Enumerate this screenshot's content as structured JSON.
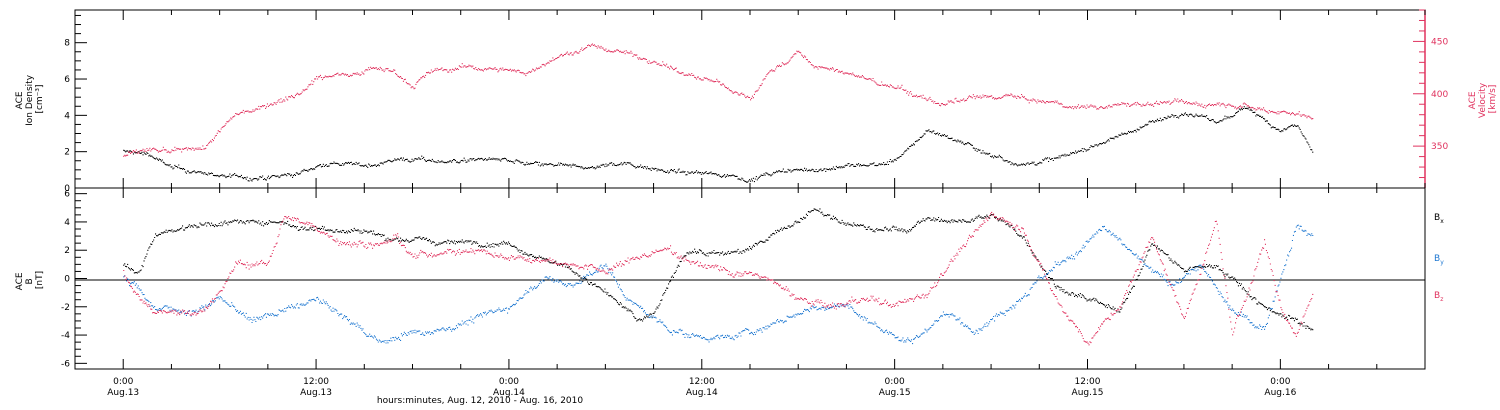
{
  "chart_data": [
    {
      "type": "scatter",
      "panel": "top",
      "ylabel_lines": [
        "ACE",
        "Ion Density",
        "[cm⁻³]"
      ],
      "ylim": [
        0,
        9.8
      ],
      "yticks": [
        0,
        2,
        4,
        6,
        8
      ],
      "ylabel_right_lines": [
        "ACE",
        "Velocity",
        "[km/s]"
      ],
      "ylim_right": [
        310,
        480
      ],
      "yticks_right": [
        350,
        400,
        450
      ],
      "xlim_hours": [
        -3,
        81
      ],
      "series": [
        {
          "axis": "left",
          "color": "#000000",
          "keypoints": [
            [
              0,
              2.0
            ],
            [
              1.5,
              1.9
            ],
            [
              3,
              1.1
            ],
            [
              5,
              0.8
            ],
            [
              7,
              0.6
            ],
            [
              9,
              0.5
            ],
            [
              11,
              0.8
            ],
            [
              12,
              1.2
            ],
            [
              13,
              1.4
            ],
            [
              15,
              1.2
            ],
            [
              17,
              1.6
            ],
            [
              19,
              1.5
            ],
            [
              21,
              1.5
            ],
            [
              23,
              1.6
            ],
            [
              25,
              1.3
            ],
            [
              27,
              1.2
            ],
            [
              29,
              1.1
            ],
            [
              31,
              1.4
            ],
            [
              33,
              1.1
            ],
            [
              35,
              0.8
            ],
            [
              37,
              0.8
            ],
            [
              39,
              0.5
            ],
            [
              41,
              0.9
            ],
            [
              43,
              1.0
            ],
            [
              45,
              1.2
            ],
            [
              47,
              1.3
            ],
            [
              48,
              1.5
            ],
            [
              49,
              2.2
            ],
            [
              50,
              3.2
            ],
            [
              52,
              2.6
            ],
            [
              54,
              1.8
            ],
            [
              56,
              1.3
            ],
            [
              58,
              1.6
            ],
            [
              60,
              2.2
            ],
            [
              62,
              2.9
            ],
            [
              64,
              3.6
            ],
            [
              66,
              4.2
            ],
            [
              68,
              3.6
            ],
            [
              70,
              4.4
            ],
            [
              72,
              3.2
            ],
            [
              73,
              3.5
            ],
            [
              74,
              2.0
            ]
          ],
          "noise": 0.25
        },
        {
          "axis": "right",
          "color": "#e0335f",
          "keypoints": [
            [
              0,
              340
            ],
            [
              1.5,
              346
            ],
            [
              3,
              343
            ],
            [
              5,
              348
            ],
            [
              7,
              380
            ],
            [
              9,
              390
            ],
            [
              11,
              402
            ],
            [
              12,
              415
            ],
            [
              14,
              420
            ],
            [
              16,
              425
            ],
            [
              17,
              420
            ],
            [
              18,
              408
            ],
            [
              19,
              420
            ],
            [
              21,
              425
            ],
            [
              23,
              424
            ],
            [
              25,
              420
            ],
            [
              27,
              435
            ],
            [
              29,
              445
            ],
            [
              31,
              440
            ],
            [
              33,
              432
            ],
            [
              35,
              418
            ],
            [
              37,
              410
            ],
            [
              39,
              395
            ],
            [
              40,
              418
            ],
            [
              42,
              440
            ],
            [
              43,
              425
            ],
            [
              45,
              420
            ],
            [
              47,
              410
            ],
            [
              49,
              400
            ],
            [
              51,
              390
            ],
            [
              53,
              395
            ],
            [
              55,
              398
            ],
            [
              57,
              392
            ],
            [
              59,
              388
            ],
            [
              61,
              388
            ],
            [
              63,
              390
            ],
            [
              65,
              392
            ],
            [
              67,
              390
            ],
            [
              69,
              392
            ],
            [
              71,
              385
            ],
            [
              73,
              382
            ],
            [
              74,
              375
            ]
          ],
          "noise": 5
        }
      ]
    },
    {
      "type": "scatter",
      "panel": "bottom",
      "ylabel_lines": [
        "ACE",
        "B",
        "[nT]"
      ],
      "ylim": [
        -6.4,
        6.4
      ],
      "yticks": [
        -6,
        -4,
        -2,
        0,
        2,
        4,
        6
      ],
      "xlim_hours": [
        -3,
        81
      ],
      "xticks_hours": [
        0,
        12,
        24,
        36,
        48,
        60,
        72
      ],
      "xtick_time_labels": [
        "0:00",
        "12:00",
        "0:00",
        "12:00",
        "0:00",
        "12:00",
        "0:00"
      ],
      "xtick_date_labels": [
        "Aug.13",
        "Aug.13",
        "Aug.14",
        "Aug.14",
        "Aug.15",
        "Aug.15",
        "Aug.16"
      ],
      "xlabel": "hours:minutes, Aug. 12, 2010 - Aug. 16, 2010",
      "series": [
        {
          "name": "Bx",
          "color": "#000000",
          "keypoints": [
            [
              0,
              1.0
            ],
            [
              1,
              0.5
            ],
            [
              2,
              3.2
            ],
            [
              4,
              3.7
            ],
            [
              6,
              4.0
            ],
            [
              8,
              3.9
            ],
            [
              10,
              4.1
            ],
            [
              11,
              3.6
            ],
            [
              13,
              3.5
            ],
            [
              15,
              3.4
            ],
            [
              16,
              3.0
            ],
            [
              18,
              2.7
            ],
            [
              20,
              2.5
            ],
            [
              22,
              2.6
            ],
            [
              24,
              2.5
            ],
            [
              26,
              1.5
            ],
            [
              28,
              0.5
            ],
            [
              30,
              -1.0
            ],
            [
              32,
              -3.0
            ],
            [
              33,
              -2.5
            ],
            [
              35,
              2.0
            ],
            [
              37,
              1.8
            ],
            [
              39,
              2.0
            ],
            [
              41,
              3.5
            ],
            [
              43,
              4.8
            ],
            [
              45,
              3.8
            ],
            [
              47,
              3.4
            ],
            [
              49,
              3.5
            ],
            [
              50,
              4.2
            ],
            [
              52,
              4.0
            ],
            [
              54,
              4.5
            ],
            [
              56,
              3.0
            ],
            [
              58,
              -0.5
            ],
            [
              60,
              -1.5
            ],
            [
              62,
              -2.5
            ],
            [
              64,
              2.5
            ],
            [
              66,
              0.5
            ],
            [
              68,
              1.0
            ],
            [
              69,
              0.0
            ],
            [
              71,
              -2.0
            ],
            [
              73,
              -3.0
            ],
            [
              74,
              -3.5
            ]
          ],
          "noise": 0.4
        },
        {
          "name": "By",
          "color": "#1f78d1",
          "keypoints": [
            [
              0,
              0.0
            ],
            [
              1,
              -0.8
            ],
            [
              2,
              -2.0
            ],
            [
              3,
              -2.2
            ],
            [
              4,
              -2.4
            ],
            [
              6,
              -1.5
            ],
            [
              8,
              -3.0
            ],
            [
              10,
              -2.3
            ],
            [
              12,
              -1.5
            ],
            [
              14,
              -3.0
            ],
            [
              16,
              -4.5
            ],
            [
              18,
              -3.8
            ],
            [
              20,
              -3.5
            ],
            [
              22,
              -2.8
            ],
            [
              24,
              -2.0
            ],
            [
              26,
              0.0
            ],
            [
              28,
              -0.5
            ],
            [
              30,
              1.0
            ],
            [
              31,
              -1.0
            ],
            [
              33,
              -3.0
            ],
            [
              35,
              -4.0
            ],
            [
              37,
              -4.2
            ],
            [
              39,
              -3.8
            ],
            [
              41,
              -3.0
            ],
            [
              43,
              -2.0
            ],
            [
              45,
              -2.0
            ],
            [
              47,
              -3.5
            ],
            [
              49,
              -4.5
            ],
            [
              51,
              -2.5
            ],
            [
              53,
              -3.5
            ],
            [
              55,
              -2.0
            ],
            [
              57,
              0.0
            ],
            [
              59,
              1.5
            ],
            [
              61,
              3.5
            ],
            [
              63,
              1.5
            ],
            [
              65,
              -0.5
            ],
            [
              67,
              1.0
            ],
            [
              69,
              -2.5
            ],
            [
              71,
              -3.5
            ],
            [
              73,
              4.0
            ],
            [
              74,
              3.0
            ]
          ],
          "noise": 0.5
        },
        {
          "name": "Bz",
          "color": "#e0335f",
          "keypoints": [
            [
              0,
              0.5
            ],
            [
              1,
              -1.5
            ],
            [
              2,
              -2.5
            ],
            [
              4,
              -2.5
            ],
            [
              5,
              -2.0
            ],
            [
              6,
              -1.0
            ],
            [
              7,
              1.0
            ],
            [
              9,
              1.0
            ],
            [
              10,
              4.5
            ],
            [
              12,
              3.5
            ],
            [
              14,
              2.5
            ],
            [
              16,
              2.5
            ],
            [
              17,
              3.0
            ],
            [
              18,
              1.5
            ],
            [
              20,
              2.0
            ],
            [
              22,
              2.0
            ],
            [
              24,
              1.5
            ],
            [
              26,
              1.5
            ],
            [
              28,
              1.0
            ],
            [
              30,
              0.5
            ],
            [
              32,
              1.5
            ],
            [
              34,
              2.0
            ],
            [
              36,
              1.0
            ],
            [
              38,
              0.5
            ],
            [
              40,
              0.0
            ],
            [
              42,
              -1.5
            ],
            [
              44,
              -2.0
            ],
            [
              46,
              -1.5
            ],
            [
              48,
              -2.0
            ],
            [
              50,
              -1.0
            ],
            [
              52,
              2.0
            ],
            [
              54,
              4.5
            ],
            [
              56,
              3.5
            ],
            [
              58,
              -1.5
            ],
            [
              60,
              -4.5
            ],
            [
              62,
              -2.0
            ],
            [
              64,
              3.0
            ],
            [
              66,
              -3.0
            ],
            [
              68,
              4.0
            ],
            [
              69,
              -4.0
            ],
            [
              71,
              2.5
            ],
            [
              72,
              -2.0
            ],
            [
              73,
              -4.0
            ],
            [
              74,
              -1.0
            ]
          ],
          "noise": 0.5
        }
      ]
    }
  ],
  "legend": {
    "bx": {
      "base": "B",
      "sub": "x",
      "color": "#000000"
    },
    "by": {
      "base": "B",
      "sub": "y",
      "color": "#1f78d1"
    },
    "bz": {
      "base": "B",
      "sub": "z",
      "color": "#e0335f"
    }
  },
  "colors": {
    "axis": "#000000",
    "velocity_axis": "#e0335f"
  }
}
